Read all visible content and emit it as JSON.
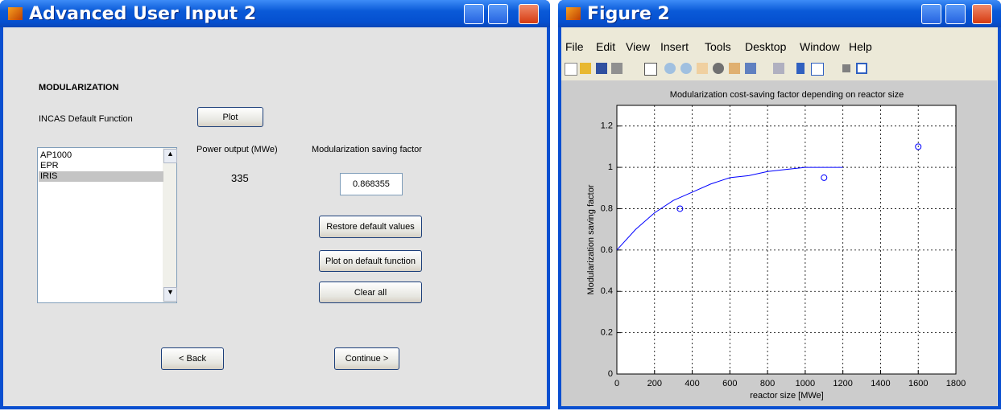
{
  "left_window": {
    "title": "Advanced User Input 2",
    "section_heading": "MODULARIZATION",
    "function_label": "INCAS Default Function",
    "plot_button": "Plot",
    "reactor_list": [
      "AP1000",
      "EPR",
      "IRIS"
    ],
    "power_output_label": "Power output (MWe)",
    "power_output_value": "335",
    "saving_factor_label": "Modularization saving factor",
    "saving_factor_value": "0.868355",
    "restore_button": "Restore default values",
    "plot_default_button": "Plot on default function",
    "clear_button": "Clear all",
    "back_button": "< Back",
    "continue_button": "Continue >"
  },
  "figure_window": {
    "title": "Figure 2",
    "menu": [
      "File",
      "Edit",
      "View",
      "Insert",
      "Tools",
      "Desktop",
      "Window",
      "Help"
    ]
  },
  "chart_data": {
    "type": "line",
    "title": "Modularization cost-saving factor depending on reactor size",
    "x_label": "reactor size [MWe]",
    "y_label": "Modularization saving factor",
    "xlim": [
      0,
      1800
    ],
    "ylim": [
      0,
      1.3
    ],
    "xticks": [
      0,
      200,
      400,
      600,
      800,
      1000,
      1200,
      1400,
      1600,
      1800
    ],
    "yticks": [
      0,
      0.2,
      0.4,
      0.6,
      0.8,
      1,
      1.2
    ],
    "grid": true,
    "series": [
      {
        "type": "line",
        "color": "#0000ff",
        "x": [
          0,
          100,
          200,
          300,
          400,
          500,
          600,
          700,
          800,
          900,
          1000,
          1100,
          1200
        ],
        "values": [
          0.6,
          0.7,
          0.78,
          0.84,
          0.88,
          0.92,
          0.95,
          0.96,
          0.98,
          0.99,
          1,
          1,
          1
        ]
      },
      {
        "type": "scatter",
        "color": "#0000ff",
        "x": [
          335,
          1100,
          1600
        ],
        "values": [
          0.8,
          0.95,
          1.1
        ]
      }
    ]
  }
}
